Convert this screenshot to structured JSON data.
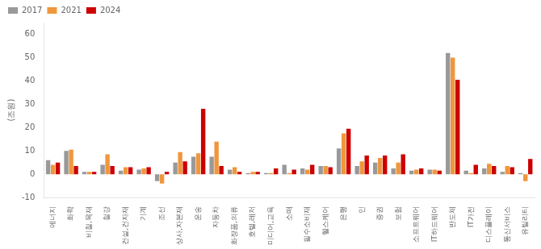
{
  "chart_data": {
    "type": "bar",
    "ylabel": "(조원)",
    "categories": [
      "에너지",
      "화학",
      "비철,목재",
      "철강",
      "건설,건자재",
      "기계",
      "조선",
      "상사,자본재",
      "운송",
      "자동차",
      "화장품,의류",
      "호텔,레저",
      "미디어,교육",
      "소매",
      "필수소비재",
      "헬스케어",
      "은행",
      "인",
      "증권",
      "보험",
      "소프트웨어",
      "IT하드웨어",
      "반도체",
      "IT가전",
      "디스플레이",
      "통신서비스",
      "유틸리티"
    ],
    "series": [
      {
        "name": "2017",
        "color": "#999999",
        "values": [
          6.0,
          10.0,
          1.0,
          4.0,
          1.5,
          2.0,
          -3.0,
          5.0,
          7.5,
          7.5,
          2.0,
          0.5,
          0.5,
          4.0,
          2.5,
          3.5,
          11.0,
          3.5,
          5.0,
          2.5,
          1.5,
          2.0,
          52.0,
          1.5,
          2.5,
          1.0,
          0.5
        ]
      },
      {
        "name": "2021",
        "color": "#F0963C",
        "values": [
          4.0,
          10.5,
          1.0,
          8.5,
          3.0,
          2.5,
          -4.0,
          9.5,
          9.0,
          14.0,
          3.0,
          1.0,
          0.5,
          0.5,
          2.0,
          3.5,
          17.5,
          5.5,
          7.0,
          5.0,
          2.0,
          2.0,
          50.0,
          0.5,
          4.5,
          3.5,
          -3.0
        ]
      },
      {
        "name": "2024",
        "color": "#CC0000",
        "values": [
          5.0,
          3.5,
          1.0,
          3.5,
          3.0,
          3.0,
          1.0,
          5.5,
          28.0,
          3.5,
          1.0,
          1.0,
          2.5,
          2.0,
          4.0,
          3.0,
          19.5,
          8.0,
          8.0,
          8.5,
          2.5,
          1.5,
          40.5,
          4.0,
          3.5,
          3.0,
          6.5
        ]
      }
    ],
    "ylim": [
      -10,
      65
    ],
    "yticks": [
      -10,
      0,
      10,
      20,
      30,
      40,
      50,
      60
    ],
    "legend": "upper left",
    "grid": false
  }
}
